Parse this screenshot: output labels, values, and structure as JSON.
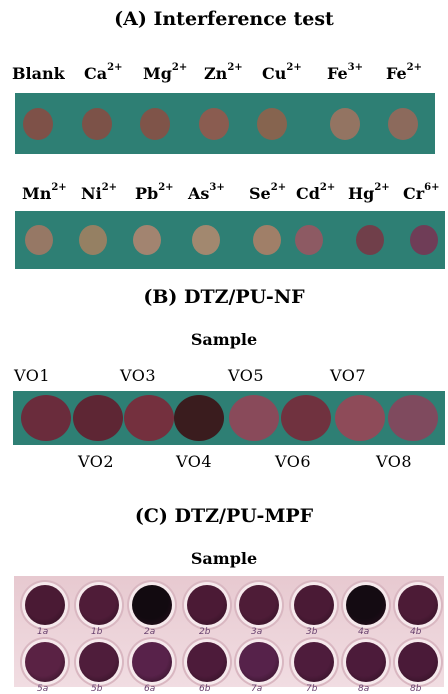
{
  "panelA": {
    "title": "(A) Interference test",
    "row1": [
      {
        "name": "Blank",
        "charge": "",
        "color": "#7e5148"
      },
      {
        "name": "Ca",
        "charge": "2+",
        "color": "#7c5248"
      },
      {
        "name": "Mg",
        "charge": "2+",
        "color": "#7f5449"
      },
      {
        "name": "Zn",
        "charge": "2+",
        "color": "#8a5c50"
      },
      {
        "name": "Cu",
        "charge": "2+",
        "color": "#86644f"
      },
      {
        "name": "Fe",
        "charge": "3+",
        "color": "#937462"
      },
      {
        "name": "Fe",
        "charge": "2+",
        "color": "#8c6a5c"
      }
    ],
    "row2": [
      {
        "name": "Mn",
        "charge": "2+",
        "color": "#967865"
      },
      {
        "name": "Ni",
        "charge": "2+",
        "color": "#958063"
      },
      {
        "name": "Pb",
        "charge": "2+",
        "color": "#a28470"
      },
      {
        "name": "As",
        "charge": "3+",
        "color": "#a2886f"
      },
      {
        "name": "Se",
        "charge": "2+",
        "color": "#a07f68"
      },
      {
        "name": "Cd",
        "charge": "2+",
        "color": "#8d5a63"
      },
      {
        "name": "Hg",
        "charge": "2+",
        "color": "#703f4a"
      },
      {
        "name": "Cr",
        "charge": "6+",
        "color": "#6f3d57"
      }
    ]
  },
  "panelB": {
    "title": "(B) DTZ/PU-NF",
    "subtitle": "Sample",
    "top_labels": [
      "VO1",
      "VO3",
      "VO5",
      "VO7"
    ],
    "bottom_labels": [
      "VO2",
      "VO4",
      "VO6",
      "VO8"
    ],
    "spots": [
      "#6a2c3c",
      "#5e2634",
      "#74303e",
      "#3a1c1e",
      "#894a5a",
      "#70323f",
      "#8e4b59",
      "#7f4a5e"
    ]
  },
  "panelC": {
    "title": "(C) DTZ/PU-MPF",
    "subtitle": "Sample",
    "row1": [
      {
        "label": "1a",
        "color": "#4a1a34"
      },
      {
        "label": "1b",
        "color": "#4f1c38"
      },
      {
        "label": "2a",
        "color": "#120a10"
      },
      {
        "label": "2b",
        "color": "#4b1a35"
      },
      {
        "label": "3a",
        "color": "#4e1c37"
      },
      {
        "label": "3b",
        "color": "#4a1a35"
      },
      {
        "label": "4a",
        "color": "#140b12"
      },
      {
        "label": "4b",
        "color": "#4c1b36"
      }
    ],
    "row2": [
      {
        "label": "5a",
        "color": "#5a2244"
      },
      {
        "label": "5b",
        "color": "#4f1d3b"
      },
      {
        "label": "6a",
        "color": "#58224a"
      },
      {
        "label": "6b",
        "color": "#4d1b3a"
      },
      {
        "label": "7a",
        "color": "#56224a"
      },
      {
        "label": "7b",
        "color": "#4e1c3c"
      },
      {
        "label": "8a",
        "color": "#4c1b3a"
      },
      {
        "label": "8b",
        "color": "#4a1a38"
      }
    ]
  }
}
